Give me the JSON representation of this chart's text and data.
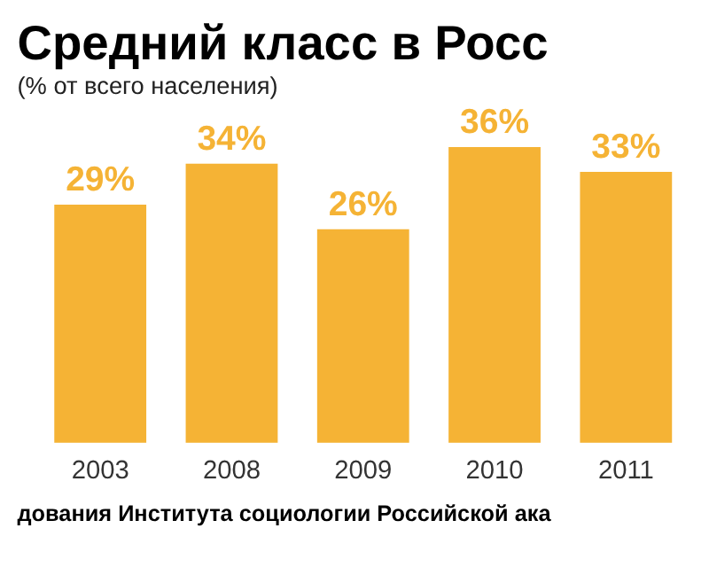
{
  "chart_data": {
    "type": "bar",
    "title": "Средний класс в Росс",
    "subtitle": "(% от всего населения)",
    "categories": [
      "2003",
      "2008",
      "2009",
      "2010",
      "2011"
    ],
    "values": [
      29,
      34,
      26,
      36,
      33
    ],
    "value_labels": [
      "29%",
      "34%",
      "26%",
      "36%",
      "33%"
    ],
    "color": "#f5b335",
    "annotations": [
      "дования Института социологии Российской ака"
    ]
  }
}
